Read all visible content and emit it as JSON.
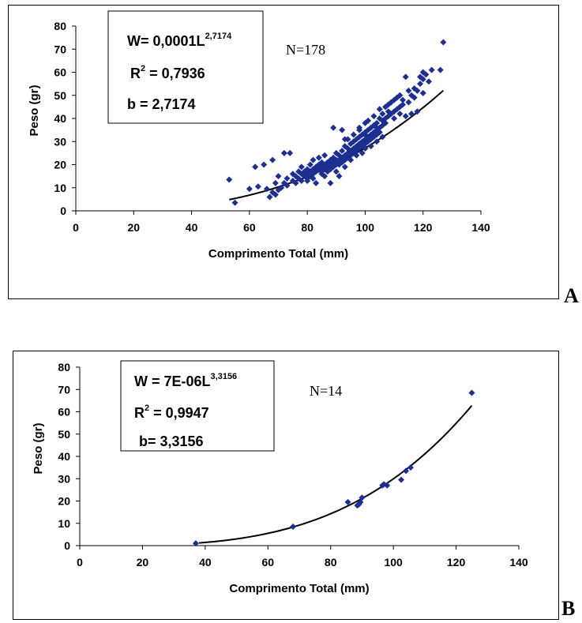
{
  "panels": [
    {
      "letter": "A"
    },
    {
      "letter": "B"
    }
  ],
  "colors": {
    "marker": "#1f2f8f",
    "curve": "#000000",
    "axis": "#000000"
  },
  "chart_data": [
    {
      "type": "scatter",
      "xlabel": "Comprimento Total (mm)",
      "ylabel": "Peso (gr)",
      "xlim": [
        0,
        140
      ],
      "ylim": [
        0,
        80
      ],
      "xticks": [
        "0",
        "20",
        "40",
        "60",
        "80",
        "100",
        "120",
        "140"
      ],
      "yticks": [
        "0",
        "10",
        "20",
        "30",
        "40",
        "50",
        "60",
        "70",
        "80"
      ],
      "xticks_num": [
        0,
        20,
        40,
        60,
        80,
        100,
        120,
        140
      ],
      "yticks_num": [
        0,
        10,
        20,
        30,
        40,
        50,
        60,
        70,
        80
      ],
      "annotation": {
        "eq_main": "W= 0,0001L",
        "eq_exp": "2,7174",
        "r2_prefix": "R",
        "r2_exp": "2",
        "r2_rest": " = 0,7936",
        "b_text": "b = 2,7174"
      },
      "n_label": "N=178",
      "trend": {
        "a": 0.0001,
        "b": 2.7174,
        "x_range": [
          53,
          127
        ]
      },
      "points": [
        [
          53,
          13.5
        ],
        [
          55,
          3.5
        ],
        [
          60,
          9.5
        ],
        [
          62,
          19
        ],
        [
          63,
          10.5
        ],
        [
          65,
          20
        ],
        [
          66,
          9.5
        ],
        [
          67,
          6
        ],
        [
          68,
          22
        ],
        [
          68,
          8
        ],
        [
          69,
          12
        ],
        [
          69,
          7
        ],
        [
          70,
          9
        ],
        [
          70,
          15
        ],
        [
          71,
          10
        ],
        [
          72,
          12
        ],
        [
          72,
          25
        ],
        [
          73,
          14
        ],
        [
          73,
          11
        ],
        [
          74,
          25
        ],
        [
          75,
          13
        ],
        [
          75,
          16
        ],
        [
          76,
          12
        ],
        [
          76,
          15
        ],
        [
          77,
          14
        ],
        [
          77,
          17
        ],
        [
          78,
          16
        ],
        [
          78,
          19
        ],
        [
          78,
          13
        ],
        [
          79,
          15
        ],
        [
          79,
          17
        ],
        [
          80,
          14
        ],
        [
          80,
          16
        ],
        [
          80,
          18
        ],
        [
          80,
          13
        ],
        [
          81,
          15
        ],
        [
          81,
          17
        ],
        [
          81,
          20
        ],
        [
          82,
          16
        ],
        [
          82,
          18
        ],
        [
          82,
          14
        ],
        [
          82,
          22
        ],
        [
          83,
          17
        ],
        [
          83,
          19
        ],
        [
          83,
          12
        ],
        [
          84,
          18
        ],
        [
          84,
          20
        ],
        [
          84,
          23
        ],
        [
          85,
          17
        ],
        [
          85,
          19
        ],
        [
          85,
          21
        ],
        [
          85,
          16
        ],
        [
          86,
          18
        ],
        [
          86,
          20
        ],
        [
          86,
          24
        ],
        [
          86,
          15
        ],
        [
          87,
          19
        ],
        [
          87,
          21
        ],
        [
          87,
          17
        ],
        [
          88,
          20
        ],
        [
          88,
          22
        ],
        [
          88,
          18
        ],
        [
          88,
          12
        ],
        [
          89,
          21
        ],
        [
          89,
          19
        ],
        [
          89,
          23
        ],
        [
          89,
          36
        ],
        [
          90,
          20
        ],
        [
          90,
          22
        ],
        [
          90,
          25
        ],
        [
          90,
          17
        ],
        [
          91,
          22
        ],
        [
          91,
          24
        ],
        [
          91,
          20
        ],
        [
          91,
          15
        ],
        [
          92,
          23
        ],
        [
          92,
          26
        ],
        [
          92,
          21
        ],
        [
          92,
          35
        ],
        [
          93,
          24
        ],
        [
          93,
          22
        ],
        [
          93,
          28
        ],
        [
          93,
          19
        ],
        [
          94,
          25
        ],
        [
          94,
          23
        ],
        [
          94,
          27
        ],
        [
          94,
          31
        ],
        [
          95,
          26
        ],
        [
          95,
          24
        ],
        [
          95,
          29
        ],
        [
          95,
          22
        ],
        [
          96,
          27
        ],
        [
          96,
          25
        ],
        [
          96,
          30
        ],
        [
          96,
          33
        ],
        [
          97,
          28
        ],
        [
          97,
          26
        ],
        [
          97,
          31
        ],
        [
          97,
          24
        ],
        [
          98,
          29
        ],
        [
          98,
          27
        ],
        [
          98,
          32
        ],
        [
          98,
          36
        ],
        [
          99,
          30
        ],
        [
          99,
          28
        ],
        [
          99,
          33
        ],
        [
          99,
          25
        ],
        [
          100,
          31
        ],
        [
          100,
          29
        ],
        [
          100,
          34
        ],
        [
          100,
          38
        ],
        [
          100,
          27
        ],
        [
          101,
          32
        ],
        [
          101,
          30
        ],
        [
          101,
          35
        ],
        [
          101,
          39
        ],
        [
          102,
          33
        ],
        [
          102,
          31
        ],
        [
          102,
          36
        ],
        [
          102,
          28
        ],
        [
          103,
          34
        ],
        [
          103,
          32
        ],
        [
          103,
          37
        ],
        [
          103,
          41
        ],
        [
          104,
          35
        ],
        [
          104,
          33
        ],
        [
          104,
          38
        ],
        [
          104,
          30
        ],
        [
          105,
          36
        ],
        [
          105,
          34
        ],
        [
          105,
          40
        ],
        [
          105,
          44
        ],
        [
          106,
          37
        ],
        [
          106,
          39
        ],
        [
          106,
          42
        ],
        [
          107,
          38
        ],
        [
          107,
          40
        ],
        [
          107,
          45
        ],
        [
          108,
          41
        ],
        [
          108,
          43
        ],
        [
          108,
          46
        ],
        [
          109,
          42
        ],
        [
          109,
          47
        ],
        [
          110,
          43
        ],
        [
          110,
          48
        ],
        [
          110,
          40
        ],
        [
          111,
          44
        ],
        [
          111,
          49
        ],
        [
          112,
          45
        ],
        [
          112,
          50
        ],
        [
          112,
          42
        ],
        [
          113,
          46
        ],
        [
          113,
          48
        ],
        [
          114,
          58
        ],
        [
          114,
          41
        ],
        [
          115,
          47
        ],
        [
          115,
          52
        ],
        [
          116,
          42
        ],
        [
          116,
          50
        ],
        [
          117,
          49
        ],
        [
          117,
          53
        ],
        [
          118,
          52
        ],
        [
          118,
          43
        ],
        [
          119,
          55
        ],
        [
          119,
          58
        ],
        [
          120,
          51
        ],
        [
          120,
          60
        ],
        [
          120,
          57
        ],
        [
          121,
          59
        ],
        [
          122,
          56
        ],
        [
          123,
          61
        ],
        [
          126,
          61
        ],
        [
          127,
          73
        ],
        [
          100,
          33
        ],
        [
          104,
          36
        ],
        [
          98,
          35
        ],
        [
          106,
          32
        ],
        [
          93,
          31
        ]
      ]
    },
    {
      "type": "scatter",
      "xlabel": "Comprimento Total (mm)",
      "ylabel": "Peso (gr)",
      "xlim": [
        0,
        140
      ],
      "ylim": [
        0,
        80
      ],
      "xticks": [
        "0",
        "20",
        "40",
        "60",
        "80",
        "100",
        "120",
        "140"
      ],
      "yticks": [
        "0",
        "10",
        "20",
        "30",
        "40",
        "50",
        "60",
        "70",
        "80"
      ],
      "xticks_num": [
        0,
        20,
        40,
        60,
        80,
        100,
        120,
        140
      ],
      "yticks_num": [
        0,
        10,
        20,
        30,
        40,
        50,
        60,
        70,
        80
      ],
      "annotation": {
        "eq_main": "W = 7E-06L",
        "eq_exp": "3,3156",
        "r2_prefix": "R",
        "r2_exp": "2",
        "r2_rest": " = 0,9947",
        "b_text": "b= 3,3156"
      },
      "n_label": "N=14",
      "trend": {
        "a": 7e-06,
        "b": 3.3156,
        "x_range": [
          38,
          125
        ]
      },
      "points": [
        [
          37,
          1
        ],
        [
          68,
          8.5
        ],
        [
          85.5,
          19.5
        ],
        [
          88.5,
          18
        ],
        [
          89.5,
          19.5
        ],
        [
          90,
          21.5
        ],
        [
          97,
          27.5
        ],
        [
          98,
          27
        ],
        [
          102.5,
          29.5
        ],
        [
          104,
          33.5
        ],
        [
          105.5,
          35
        ],
        [
          125,
          68.5
        ],
        [
          89,
          18.5
        ],
        [
          96.5,
          27
        ]
      ]
    }
  ]
}
